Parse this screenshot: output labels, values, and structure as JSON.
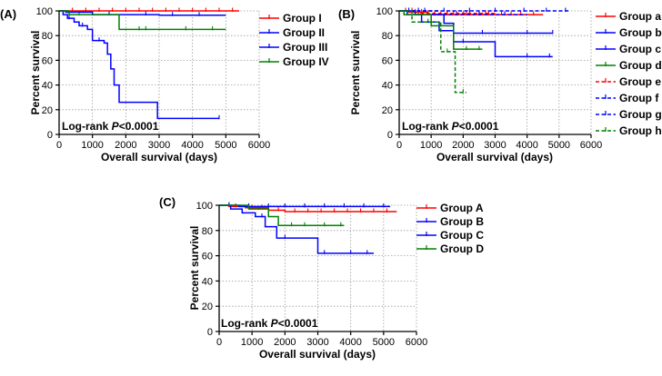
{
  "chart_data": [
    {
      "type": "line",
      "panel_label": "(A)",
      "xlabel": "Overall survival (days)",
      "ylabel": "Percent survival",
      "xlim": [
        0,
        6000
      ],
      "ylim": [
        0,
        100
      ],
      "xticks": [
        "0",
        "1000",
        "2000",
        "3000",
        "4000",
        "5000",
        "6000"
      ],
      "yticks": [
        "0",
        "20",
        "40",
        "60",
        "80",
        "100"
      ],
      "grid": true,
      "annotation_prefix": "Log-rank ",
      "annotation_p": "P",
      "annotation_value": "<0.0001",
      "series": [
        {
          "name": "Group I",
          "color": "#ff0000",
          "dash": false,
          "steps": [
            [
              0,
              100
            ],
            [
              5400,
              100
            ]
          ],
          "censored": [
            400,
            800,
            1200,
            1600,
            2000,
            2400,
            2800,
            3200,
            3600,
            4000,
            4400,
            4800,
            5200
          ]
        },
        {
          "name": "Group II",
          "color": "#0000ff",
          "dash": false,
          "steps": [
            [
              0,
              100
            ],
            [
              200,
              99
            ],
            [
              1000,
              97
            ],
            [
              3000,
              96.5
            ],
            [
              5000,
              96.5
            ]
          ],
          "censored": [
            1500,
            2600,
            3400,
            4200
          ]
        },
        {
          "name": "Group III",
          "color": "#0000ff",
          "dash": false,
          "steps": [
            [
              0,
              100
            ],
            [
              120,
              97
            ],
            [
              250,
              94
            ],
            [
              450,
              91
            ],
            [
              600,
              88
            ],
            [
              850,
              85
            ],
            [
              1000,
              76
            ],
            [
              1350,
              74
            ],
            [
              1450,
              65
            ],
            [
              1550,
              53
            ],
            [
              1650,
              40
            ],
            [
              1800,
              26
            ],
            [
              2950,
              13
            ],
            [
              4800,
              13
            ]
          ],
          "censored": [
            300,
            700,
            1200,
            4800
          ]
        },
        {
          "name": "Group IV",
          "color": "#008000",
          "dash": false,
          "steps": [
            [
              0,
              100
            ],
            [
              300,
              97
            ],
            [
              1800,
              85
            ],
            [
              5000,
              85
            ]
          ],
          "censored": [
            600,
            1000,
            2400,
            2600,
            3800,
            4600
          ]
        }
      ]
    },
    {
      "type": "line",
      "panel_label": "(B)",
      "xlabel": "Overall survival (days)",
      "ylabel": "Percent survival",
      "xlim": [
        0,
        6000
      ],
      "ylim": [
        0,
        100
      ],
      "xticks": [
        "0",
        "1000",
        "2000",
        "3000",
        "4000",
        "5000",
        "6000"
      ],
      "yticks": [
        "0",
        "20",
        "40",
        "60",
        "80",
        "100"
      ],
      "grid": true,
      "annotation_prefix": "Log-rank ",
      "annotation_p": "P",
      "annotation_value": "<0.0001",
      "series": [
        {
          "name": "Group a",
          "color": "#ff0000",
          "dash": false,
          "steps": [
            [
              0,
              100
            ],
            [
              300,
              99
            ],
            [
              900,
              97
            ],
            [
              4500,
              97
            ]
          ],
          "censored": [
            200,
            500,
            700,
            1100,
            1300,
            1500,
            1700,
            2000,
            2200,
            2500,
            2800,
            3200,
            3500,
            3800,
            4200
          ]
        },
        {
          "name": "Group b",
          "color": "#0000ff",
          "dash": false,
          "steps": [
            [
              0,
              100
            ],
            [
              500,
              97
            ],
            [
              1400,
              90
            ],
            [
              1700,
              82
            ],
            [
              4800,
              82
            ]
          ],
          "censored": [
            2600,
            4000,
            4800
          ]
        },
        {
          "name": "Group c",
          "color": "#0000ff",
          "dash": false,
          "steps": [
            [
              0,
              100
            ],
            [
              250,
              97
            ],
            [
              700,
              91
            ],
            [
              1250,
              84
            ],
            [
              1700,
              75
            ],
            [
              3000,
              63
            ],
            [
              4800,
              63
            ]
          ],
          "censored": [
            1000,
            2000,
            4000,
            4700
          ]
        },
        {
          "name": "Group d",
          "color": "#008000",
          "dash": false,
          "steps": [
            [
              0,
              100
            ],
            [
              150,
              97
            ],
            [
              1000,
              88
            ],
            [
              1700,
              69
            ],
            [
              2600,
              69
            ]
          ],
          "censored": [
            600,
            1300,
            2100,
            2500
          ]
        },
        {
          "name": "Group e",
          "color": "#ff0000",
          "dash": true,
          "steps": [
            [
              0,
              100
            ],
            [
              600,
              98
            ],
            [
              3000,
              98
            ]
          ],
          "censored": [
            400,
            900,
            1500,
            2100,
            2700
          ]
        },
        {
          "name": "Group f",
          "color": "#0000ff",
          "dash": true,
          "steps": [
            [
              0,
              100
            ],
            [
              5300,
              100
            ]
          ],
          "censored": [
            300,
            800,
            1400,
            2200,
            3000,
            3900,
            4600,
            5200
          ]
        },
        {
          "name": "Group g",
          "color": "#0000ff",
          "dash": true,
          "steps": [
            [
              0,
              100
            ],
            [
              1200,
              97
            ],
            [
              4000,
              97
            ]
          ],
          "censored": [
            600,
            1800,
            2500,
            3300
          ]
        },
        {
          "name": "Group h",
          "color": "#008000",
          "dash": true,
          "steps": [
            [
              0,
              100
            ],
            [
              400,
              91
            ],
            [
              1300,
              67
            ],
            [
              1750,
              34
            ],
            [
              2100,
              34
            ]
          ],
          "censored": [
            900,
            1500,
            2000
          ]
        }
      ]
    },
    {
      "type": "line",
      "panel_label": "(C)",
      "xlabel": "Overall survival (days)",
      "ylabel": "Percent survival",
      "xlim": [
        0,
        6000
      ],
      "ylim": [
        0,
        100
      ],
      "xticks": [
        "0",
        "1000",
        "2000",
        "3000",
        "4000",
        "5000",
        "6000"
      ],
      "yticks": [
        "0",
        "20",
        "40",
        "60",
        "80",
        "100"
      ],
      "grid": true,
      "annotation_prefix": "Log-rank ",
      "annotation_p": "P",
      "annotation_value": "<0.0001",
      "series": [
        {
          "name": "Group A",
          "color": "#ff0000",
          "dash": false,
          "steps": [
            [
              0,
              100
            ],
            [
              300,
              99
            ],
            [
              800,
              98
            ],
            [
              1500,
              96
            ],
            [
              2000,
              95
            ],
            [
              5400,
              95
            ]
          ],
          "censored": [
            500,
            1000,
            1300,
            1800,
            2300,
            2700,
            3100,
            3500,
            3900,
            4300,
            4700,
            5100
          ]
        },
        {
          "name": "Group B",
          "color": "#0000ff",
          "dash": false,
          "steps": [
            [
              0,
              100
            ],
            [
              600,
              99
            ],
            [
              5200,
              99
            ]
          ],
          "censored": [
            300,
            900,
            1500,
            2000,
            2600,
            3200,
            3800,
            4400,
            5000
          ]
        },
        {
          "name": "Group C",
          "color": "#0000ff",
          "dash": false,
          "steps": [
            [
              0,
              100
            ],
            [
              350,
              97
            ],
            [
              700,
              94
            ],
            [
              1100,
              91
            ],
            [
              1400,
              83
            ],
            [
              1750,
              74
            ],
            [
              3000,
              62
            ],
            [
              4700,
              62
            ]
          ],
          "censored": [
            1300,
            2000,
            3200,
            4000,
            4500
          ]
        },
        {
          "name": "Group D",
          "color": "#008000",
          "dash": false,
          "steps": [
            [
              0,
              100
            ],
            [
              900,
              97
            ],
            [
              1500,
              91
            ],
            [
              1800,
              84
            ],
            [
              3800,
              84
            ]
          ],
          "censored": [
            1200,
            2200,
            2600,
            3200,
            3700
          ]
        }
      ]
    }
  ]
}
